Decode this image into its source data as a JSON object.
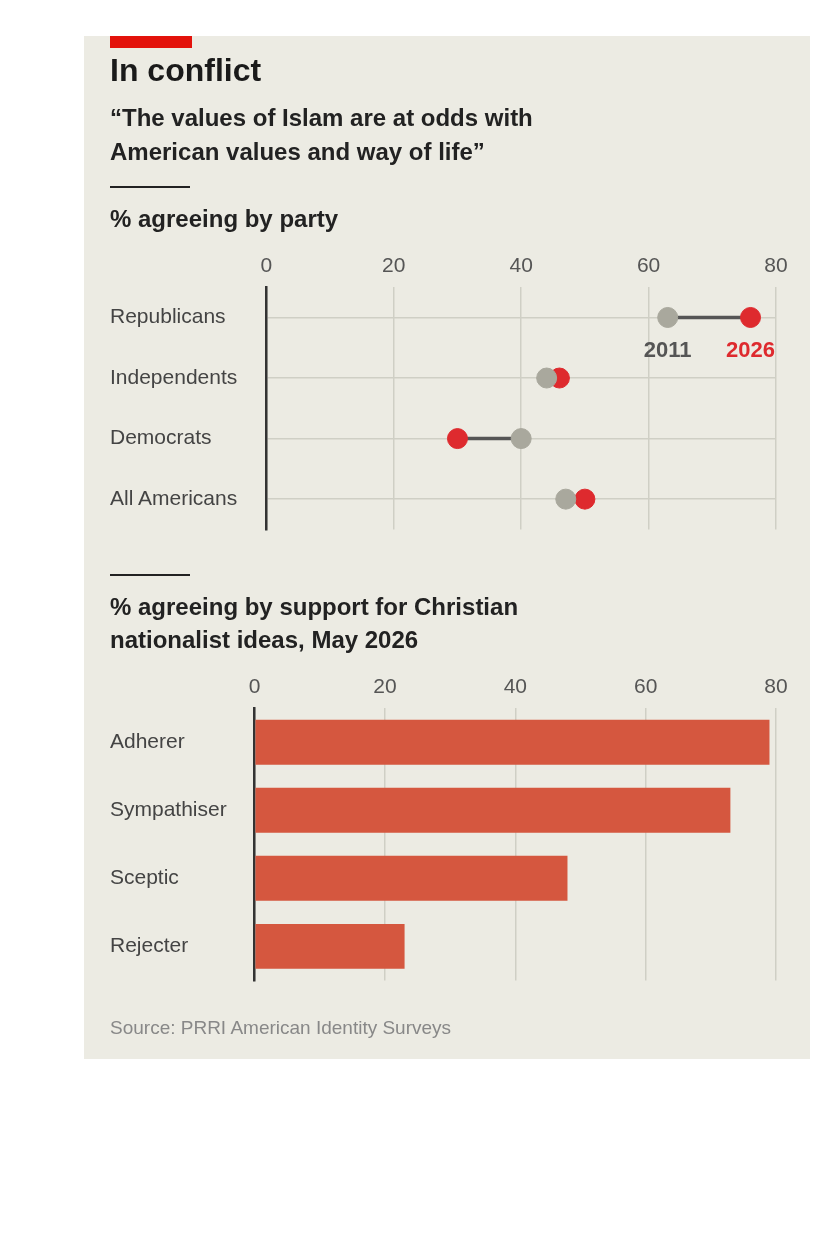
{
  "chart_data": [
    {
      "type": "other",
      "title": "In conflict",
      "subtitle": "“The values of Islam are at odds with American values and way of life”"
    },
    {
      "type": "scatter",
      "orientation": "horizontal",
      "title": "% agreeing by party",
      "categories": [
        "Republicans",
        "Independents",
        "Democrats",
        "All Americans"
      ],
      "series": [
        {
          "name": "2011",
          "color": "#a9a89d",
          "values": [
            63,
            44,
            40,
            47
          ]
        },
        {
          "name": "2026",
          "color": "#de2a2e",
          "values": [
            76,
            46,
            30,
            50
          ]
        }
      ],
      "marker": "circle",
      "xlim": [
        0,
        80
      ],
      "xticks": [
        0,
        20,
        40,
        60,
        80
      ],
      "grid": true
    },
    {
      "type": "bar",
      "orientation": "horizontal",
      "title": "% agreeing by support for Christian nationalist ideas, May 2026",
      "categories": [
        "Adherer",
        "Sympathiser",
        "Sceptic",
        "Rejecter"
      ],
      "values": [
        79,
        73,
        48,
        23
      ],
      "color": "#d5573f",
      "xlim": [
        0,
        80
      ],
      "xticks": [
        0,
        20,
        40,
        60,
        80
      ],
      "grid": "x",
      "annotations": [
        "Source: PRRI American Identity Surveys"
      ]
    }
  ]
}
